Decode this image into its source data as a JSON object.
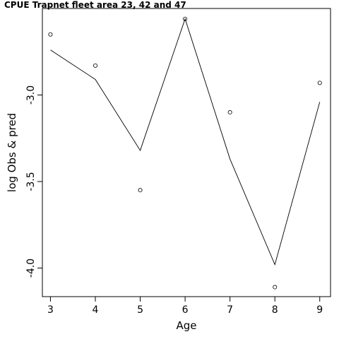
{
  "chart_data": {
    "type": "line",
    "title": "CPUE Trapnet fleet area 23, 42 and 47",
    "xlabel": "Age",
    "ylabel": "log Obs & pred",
    "x": [
      3,
      4,
      5,
      6,
      7,
      8,
      9
    ],
    "series": [
      {
        "name": "",
        "type": "line",
        "values": [
          -2.74,
          -2.91,
          -3.32,
          -2.56,
          -3.37,
          -3.98,
          -3.04
        ]
      },
      {
        "name": "",
        "type": "scatter",
        "values": [
          -2.65,
          -2.83,
          -3.55,
          -2.56,
          -3.1,
          -4.11,
          -2.93
        ]
      }
    ],
    "xticks": [
      "3",
      "4",
      "5",
      "6",
      "7",
      "8",
      "9"
    ],
    "yticks": [
      "-3.0",
      "-3.5",
      "-4.0"
    ],
    "xlim": [
      2.82,
      9.24
    ],
    "ylim": [
      -4.165,
      -2.5
    ],
    "grid": false,
    "legend": "none"
  }
}
